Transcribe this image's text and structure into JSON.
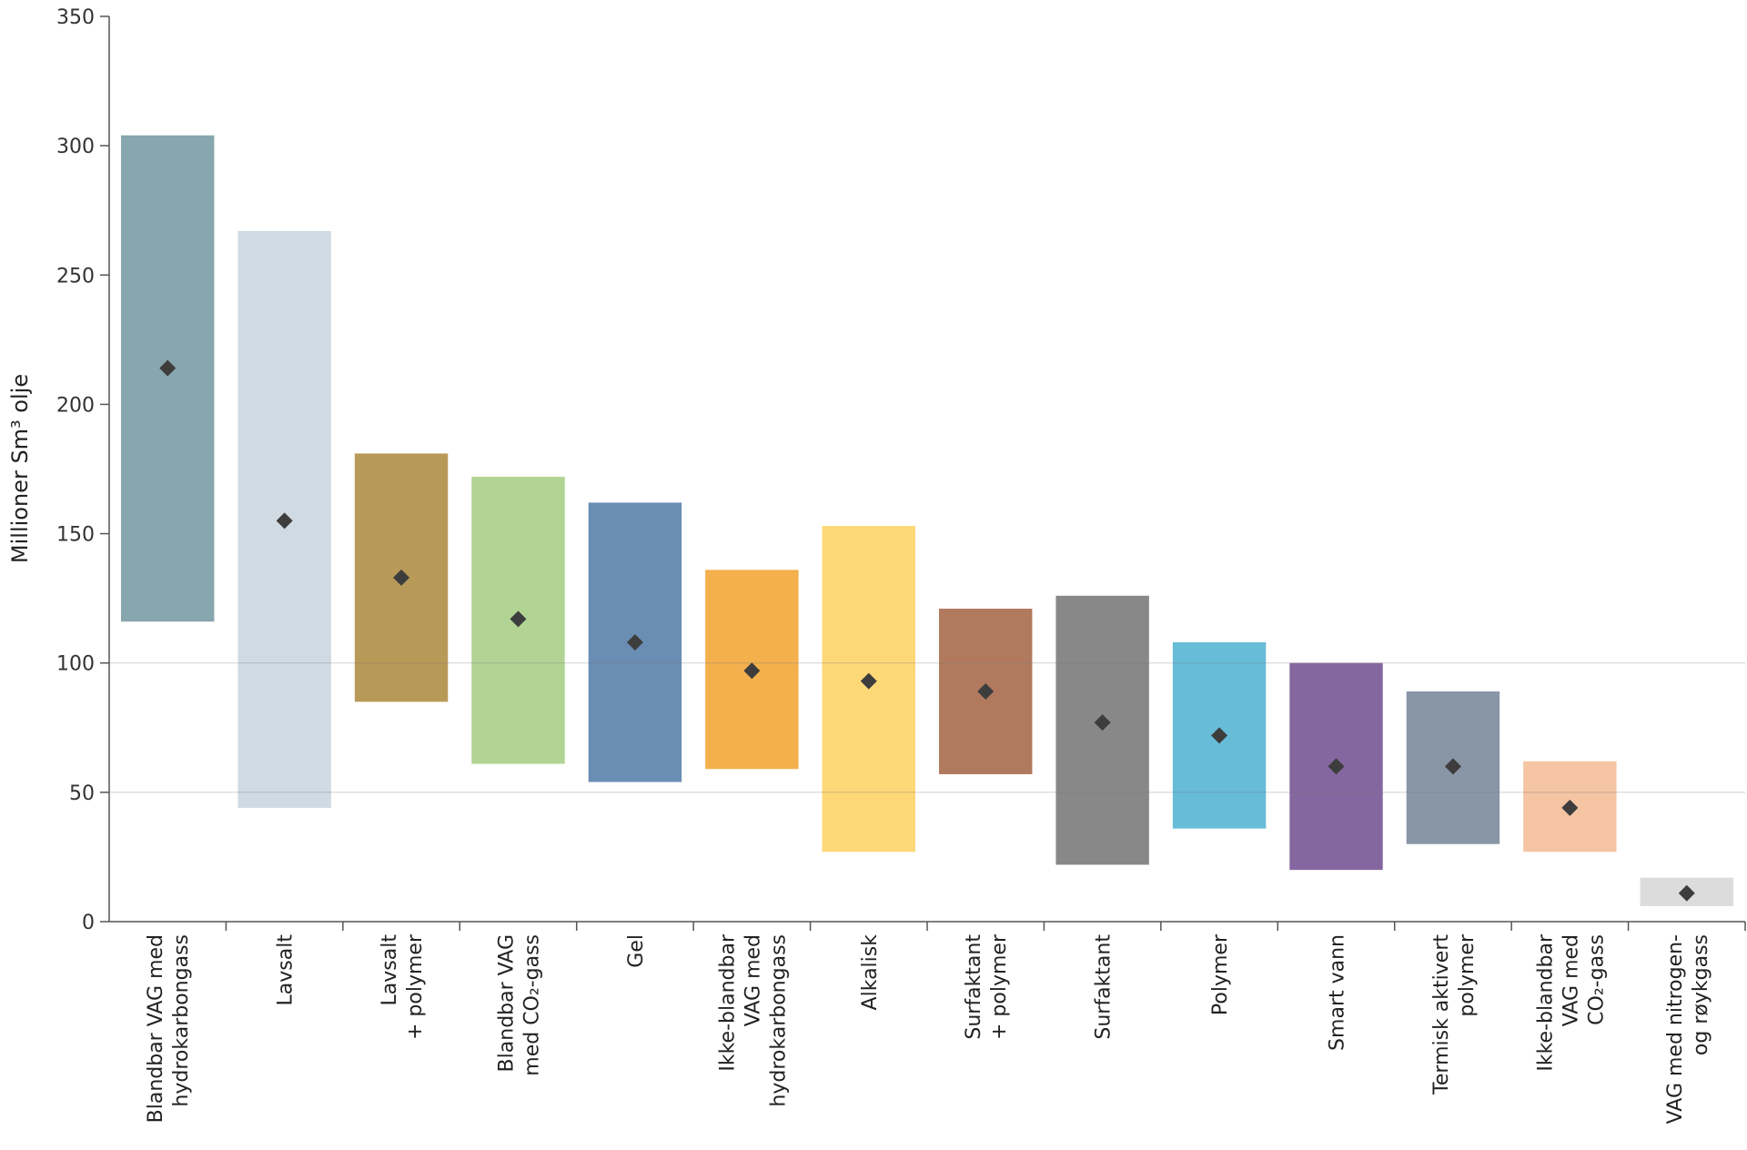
{
  "chart_data": {
    "type": "bar",
    "subtype": "floating-range-with-marker",
    "ylabel": "Millioner Sm³ olje",
    "ylim": [
      0,
      350
    ],
    "yticks": [
      0,
      50,
      100,
      150,
      200,
      250,
      300,
      350
    ],
    "grid": false,
    "categories": [
      {
        "label_lines": [
          "Blandbar VAG med",
          "hydrokarbongass"
        ],
        "low": 116,
        "high": 304,
        "marker": 214,
        "color": "#87a6ae"
      },
      {
        "label_lines": [
          "Lavsalt"
        ],
        "low": 44,
        "high": 267,
        "marker": 155,
        "color": "#d0dae2"
      },
      {
        "label_lines": [
          "Lavsalt",
          "+ polymer"
        ],
        "low": 85,
        "high": 181,
        "marker": 133,
        "color": "#b89a58"
      },
      {
        "label_lines": [
          "Blandbar VAG",
          "med CO₂-gass"
        ],
        "low": 61,
        "high": 172,
        "marker": 117,
        "color": "#b1d494"
      },
      {
        "label_lines": [
          "Gel"
        ],
        "low": 54,
        "high": 162,
        "marker": 108,
        "color": "#6a8db4"
      },
      {
        "label_lines": [
          "Ikke-blandbar",
          "VAG med",
          "hydrokarbongass"
        ],
        "low": 59,
        "high": 136,
        "marker": 97,
        "color": "#f3b04c"
      },
      {
        "label_lines": [
          "Alkalisk"
        ],
        "low": 27,
        "high": 153,
        "marker": 93,
        "color": "#fdd877"
      },
      {
        "label_lines": [
          "Surfaktant",
          "+ polymer"
        ],
        "low": 57,
        "high": 121,
        "marker": 89,
        "color": "#b17a5f"
      },
      {
        "label_lines": [
          "Surfaktant"
        ],
        "low": 22,
        "high": 126,
        "marker": 77,
        "color": "#888888"
      },
      {
        "label_lines": [
          "Polymer"
        ],
        "low": 36,
        "high": 108,
        "marker": 72,
        "color": "#67bcd8"
      },
      {
        "label_lines": [
          "Smart vann"
        ],
        "low": 20,
        "high": 100,
        "marker": 60,
        "color": "#8567a0"
      },
      {
        "label_lines": [
          "Termisk aktivert",
          "polymer"
        ],
        "low": 30,
        "high": 89,
        "marker": 60,
        "color": "#8896a6"
      },
      {
        "label_lines": [
          "Ikke-blandbar",
          "VAG med",
          "CO₂-gass"
        ],
        "low": 27,
        "high": 62,
        "marker": 44,
        "color": "#f5c4a2"
      },
      {
        "label_lines": [
          "VAG med nitrogen-",
          "og røykgass"
        ],
        "low": 6,
        "high": 17,
        "marker": 11,
        "color": "#dcdcdc"
      }
    ],
    "marker_color": "#3d3d3d",
    "axis_color": "#555555",
    "reference_line_color": "#777777"
  }
}
